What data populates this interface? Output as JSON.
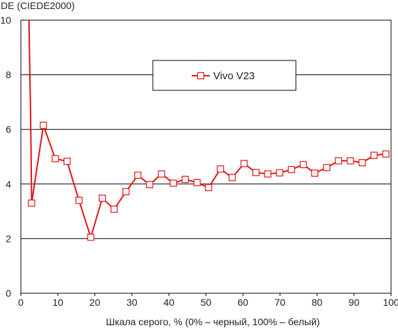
{
  "chart_data": {
    "type": "line",
    "ylabel": "DE (CIEDE2000)",
    "xlabel": "Шкала серого, % (0% – черный, 100% – белый)",
    "xlim": [
      0,
      100
    ],
    "ylim": [
      0,
      10
    ],
    "xticks": [
      "0",
      "10",
      "20",
      "30",
      "40",
      "50",
      "60",
      "70",
      "80",
      "90",
      "100"
    ],
    "yticks": [
      "0",
      "2",
      "4",
      "6",
      "8",
      "10"
    ],
    "grid": "horizontal",
    "legend_position": "upper-center",
    "series": [
      {
        "name": "Vivo V23",
        "color": "#e01414",
        "marker": "square-open",
        "line_only": [
          {
            "x": 2.2,
            "y": 10.0
          },
          {
            "x": 2.5,
            "y": 7.5
          },
          {
            "x": 2.6,
            "y": 6.8
          },
          {
            "x": 2.75,
            "y": 5.2
          }
        ],
        "x": [
          2.9,
          6.1,
          9.3,
          12.5,
          15.7,
          18.9,
          22.0,
          25.2,
          28.4,
          31.6,
          34.8,
          38.0,
          41.2,
          44.4,
          47.6,
          50.7,
          53.9,
          57.1,
          60.3,
          63.5,
          66.7,
          69.9,
          73.1,
          76.3,
          79.4,
          82.6,
          85.8,
          89.0,
          92.2,
          95.4,
          98.6
        ],
        "y": [
          3.3,
          6.15,
          4.93,
          4.83,
          3.4,
          2.05,
          3.48,
          3.08,
          3.72,
          4.32,
          3.98,
          4.37,
          4.03,
          4.17,
          4.05,
          3.87,
          4.55,
          4.24,
          4.75,
          4.42,
          4.37,
          4.41,
          4.53,
          4.71,
          4.4,
          4.6,
          4.85,
          4.85,
          4.78,
          5.05,
          5.1
        ]
      }
    ]
  }
}
